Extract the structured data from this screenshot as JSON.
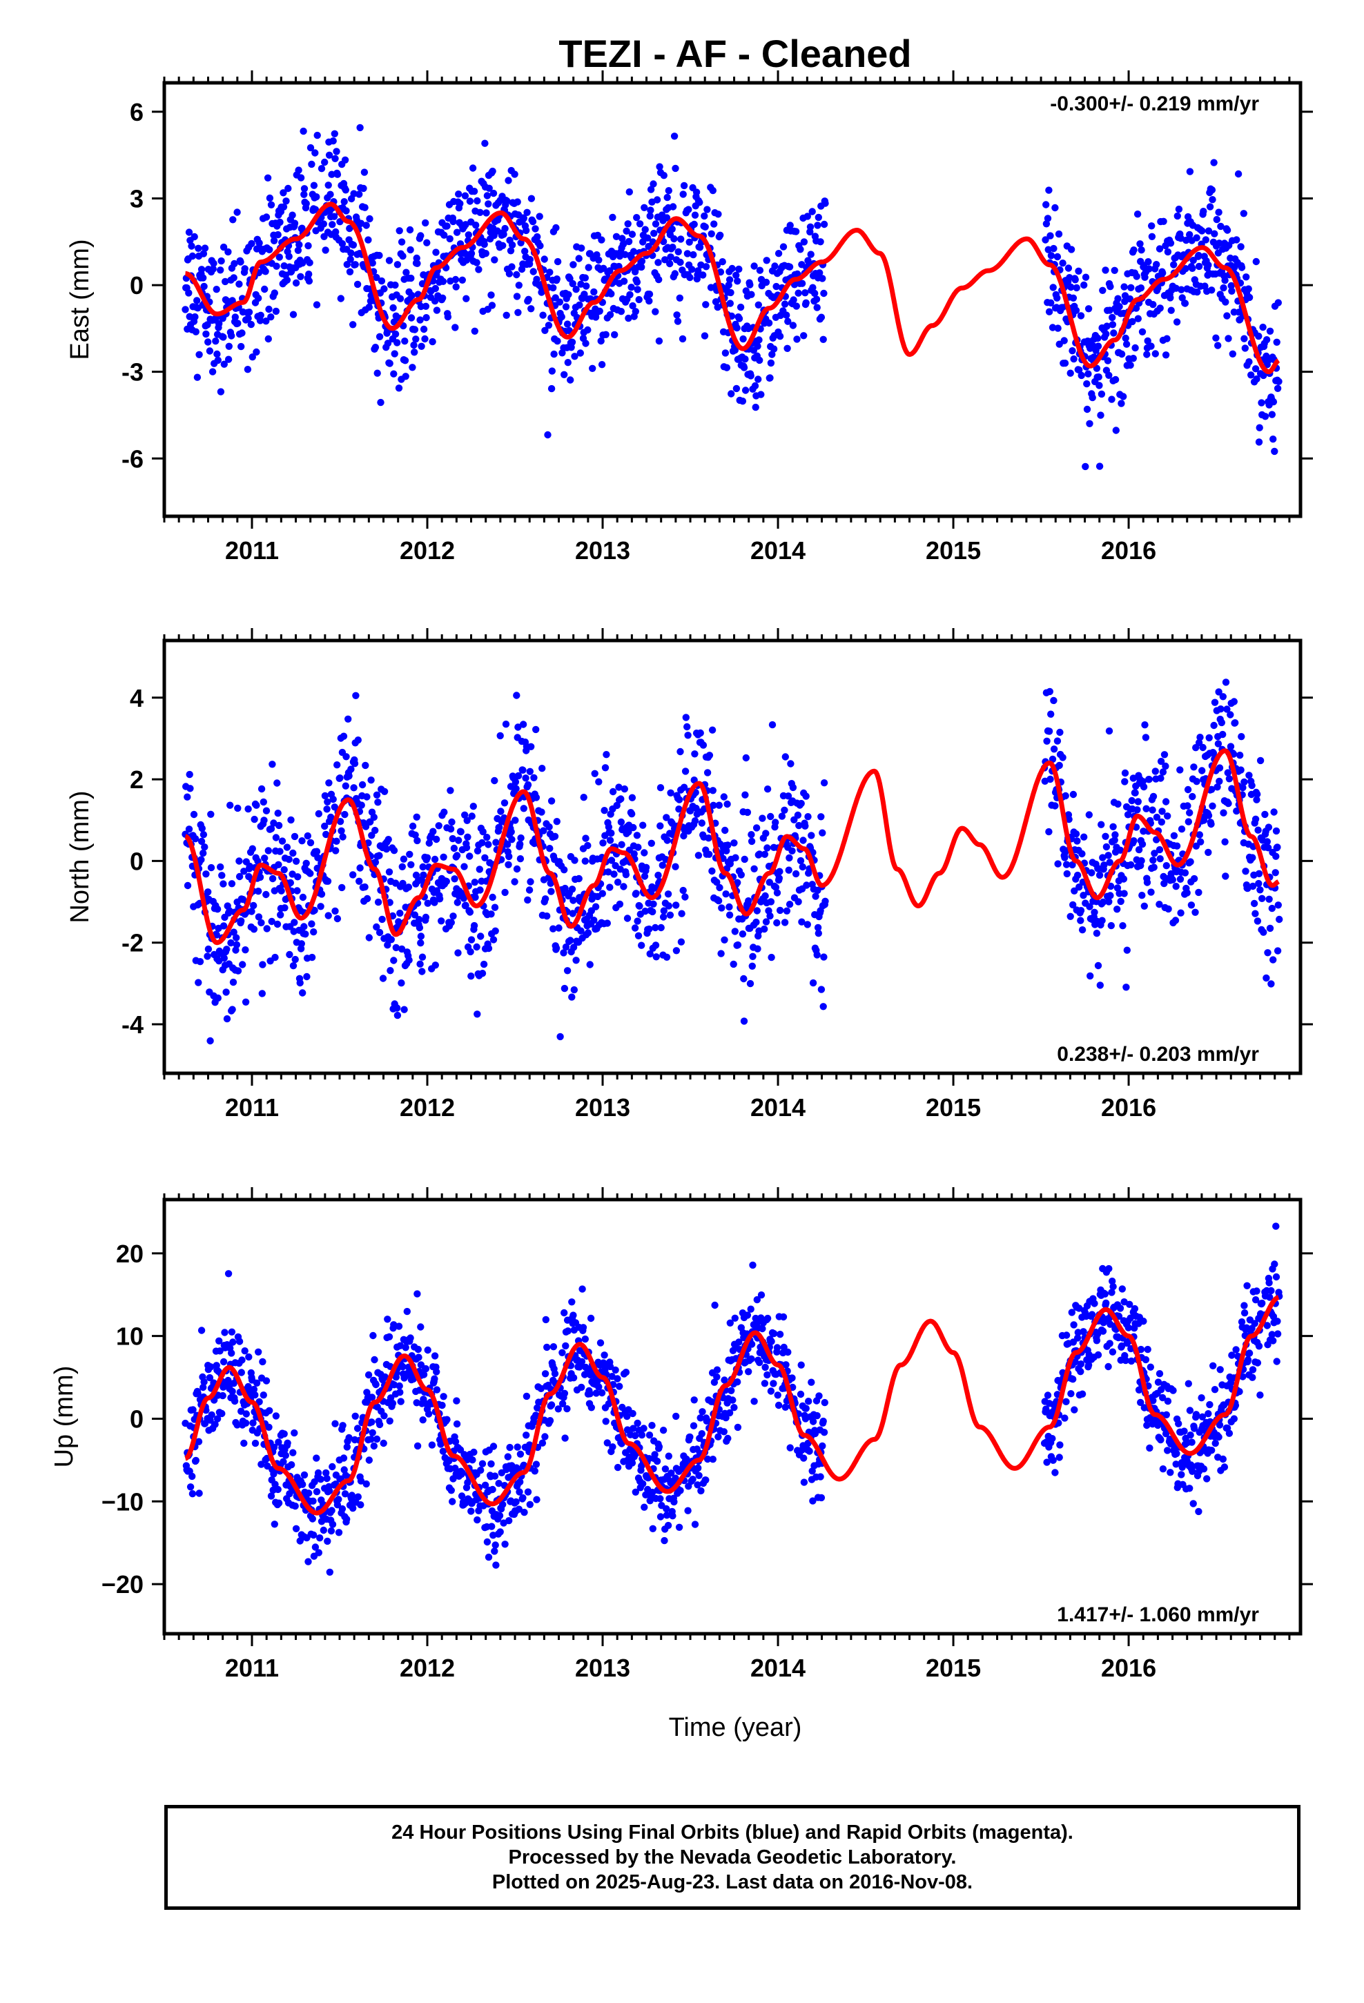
{
  "chart_data": {
    "type": "scatter",
    "title": "TEZI  - AF - Cleaned",
    "xlabel": "Time (year)",
    "xlim": [
      2010.5,
      2016.98
    ],
    "x_ticks": [
      2011,
      2012,
      2013,
      2014,
      2015,
      2016
    ],
    "x_tick_labels": [
      "2011",
      "2012",
      "2013",
      "2014",
      "2015",
      "2016"
    ],
    "colors": {
      "data": "#0000ff",
      "model": "#ff0000",
      "frame": "#000000"
    },
    "grid": false,
    "data_segments": [
      [
        2010.62,
        2014.27
      ],
      [
        2015.52,
        2016.86
      ]
    ],
    "panels": [
      {
        "name": "east",
        "ylabel": "East (mm)",
        "ylim": [
          -8.0,
          7.0
        ],
        "y_ticks": [
          -6,
          -3,
          0,
          3,
          6
        ],
        "y_tick_labels": [
          "-6",
          "-3",
          "0",
          "3",
          "6"
        ],
        "rate_label": "-0.300+/- 0.219 mm/yr",
        "rate_position": "top-right",
        "model_points": [
          [
            2010.62,
            0.4
          ],
          [
            2010.8,
            -1.0
          ],
          [
            2010.95,
            -0.6
          ],
          [
            2011.05,
            0.8
          ],
          [
            2011.25,
            1.6
          ],
          [
            2011.45,
            2.8
          ],
          [
            2011.55,
            2.2
          ],
          [
            2011.8,
            -1.5
          ],
          [
            2011.95,
            -0.5
          ],
          [
            2012.05,
            0.6
          ],
          [
            2012.2,
            1.3
          ],
          [
            2012.42,
            2.5
          ],
          [
            2012.55,
            1.6
          ],
          [
            2012.8,
            -1.8
          ],
          [
            2012.95,
            -0.6
          ],
          [
            2013.1,
            0.5
          ],
          [
            2013.25,
            1.1
          ],
          [
            2013.42,
            2.3
          ],
          [
            2013.55,
            1.7
          ],
          [
            2013.8,
            -2.2
          ],
          [
            2013.95,
            -0.8
          ],
          [
            2014.1,
            0.2
          ],
          [
            2014.25,
            0.8
          ],
          [
            2014.45,
            1.9
          ],
          [
            2014.58,
            1.1
          ],
          [
            2014.75,
            -2.4
          ],
          [
            2014.88,
            -1.4
          ],
          [
            2015.05,
            -0.1
          ],
          [
            2015.2,
            0.5
          ],
          [
            2015.42,
            1.6
          ],
          [
            2015.55,
            0.7
          ],
          [
            2015.78,
            -2.8
          ],
          [
            2015.92,
            -1.9
          ],
          [
            2016.05,
            -0.5
          ],
          [
            2016.2,
            0.2
          ],
          [
            2016.42,
            1.3
          ],
          [
            2016.55,
            0.6
          ],
          [
            2016.8,
            -3.0
          ],
          [
            2016.86,
            -2.6
          ]
        ],
        "amplitude": 2.0,
        "noise": 1.2
      },
      {
        "name": "north",
        "ylabel": "North (mm)",
        "ylim": [
          -5.2,
          5.4
        ],
        "y_ticks": [
          -4,
          -2,
          0,
          2,
          4
        ],
        "y_tick_labels": [
          "-4",
          "-2",
          "0",
          "2",
          "4"
        ],
        "rate_label": "0.238+/- 0.203 mm/yr",
        "rate_position": "bottom-right",
        "model_points": [
          [
            2010.62,
            0.6
          ],
          [
            2010.8,
            -2.0
          ],
          [
            2010.95,
            -1.2
          ],
          [
            2011.05,
            -0.1
          ],
          [
            2011.15,
            -0.3
          ],
          [
            2011.28,
            -1.4
          ],
          [
            2011.55,
            1.5
          ],
          [
            2011.7,
            -0.2
          ],
          [
            2011.82,
            -1.8
          ],
          [
            2011.95,
            -0.9
          ],
          [
            2012.05,
            -0.1
          ],
          [
            2012.15,
            -0.2
          ],
          [
            2012.28,
            -1.1
          ],
          [
            2012.55,
            1.7
          ],
          [
            2012.7,
            -0.3
          ],
          [
            2012.82,
            -1.6
          ],
          [
            2012.95,
            -0.6
          ],
          [
            2013.05,
            0.3
          ],
          [
            2013.12,
            0.2
          ],
          [
            2013.28,
            -0.9
          ],
          [
            2013.55,
            1.9
          ],
          [
            2013.7,
            -0.3
          ],
          [
            2013.82,
            -1.3
          ],
          [
            2013.95,
            -0.3
          ],
          [
            2014.05,
            0.6
          ],
          [
            2014.15,
            0.3
          ],
          [
            2014.25,
            -0.6
          ],
          [
            2014.55,
            2.2
          ],
          [
            2014.68,
            -0.2
          ],
          [
            2014.8,
            -1.1
          ],
          [
            2014.92,
            -0.3
          ],
          [
            2015.05,
            0.8
          ],
          [
            2015.15,
            0.4
          ],
          [
            2015.28,
            -0.4
          ],
          [
            2015.55,
            2.4
          ],
          [
            2015.7,
            0.0
          ],
          [
            2015.82,
            -0.9
          ],
          [
            2015.95,
            0.0
          ],
          [
            2016.05,
            1.1
          ],
          [
            2016.15,
            0.7
          ],
          [
            2016.28,
            -0.1
          ],
          [
            2016.55,
            2.7
          ],
          [
            2016.7,
            0.6
          ],
          [
            2016.82,
            -0.6
          ],
          [
            2016.86,
            -0.5
          ]
        ],
        "amplitude": 1.5,
        "noise": 1.0
      },
      {
        "name": "up",
        "ylabel": "Up (mm)",
        "ylim": [
          -26.0,
          26.5
        ],
        "y_ticks": [
          -20,
          -10,
          0,
          10,
          20
        ],
        "y_tick_labels": [
          "−20",
          "−10",
          "0",
          "10",
          "20"
        ],
        "rate_label": "1.417+/- 1.060 mm/yr",
        "rate_position": "bottom-right",
        "model_points": [
          [
            2010.62,
            -4.8
          ],
          [
            2010.75,
            2.5
          ],
          [
            2010.87,
            6.2
          ],
          [
            2011.0,
            2.0
          ],
          [
            2011.15,
            -6.0
          ],
          [
            2011.37,
            -11.4
          ],
          [
            2011.55,
            -7.5
          ],
          [
            2011.7,
            2.0
          ],
          [
            2011.87,
            7.6
          ],
          [
            2012.0,
            3.5
          ],
          [
            2012.15,
            -4.5
          ],
          [
            2012.37,
            -10.3
          ],
          [
            2012.55,
            -6.5
          ],
          [
            2012.7,
            3.0
          ],
          [
            2012.87,
            9.0
          ],
          [
            2013.0,
            5.0
          ],
          [
            2013.15,
            -3.0
          ],
          [
            2013.37,
            -8.8
          ],
          [
            2013.55,
            -5.0
          ],
          [
            2013.7,
            4.0
          ],
          [
            2013.87,
            10.4
          ],
          [
            2014.0,
            6.5
          ],
          [
            2014.15,
            -2.0
          ],
          [
            2014.35,
            -7.3
          ],
          [
            2014.55,
            -2.5
          ],
          [
            2014.7,
            6.5
          ],
          [
            2014.87,
            11.8
          ],
          [
            2015.0,
            8.0
          ],
          [
            2015.15,
            -1.0
          ],
          [
            2015.35,
            -6.0
          ],
          [
            2015.55,
            -1.0
          ],
          [
            2015.7,
            8.0
          ],
          [
            2015.87,
            13.2
          ],
          [
            2016.0,
            10.0
          ],
          [
            2016.15,
            0.5
          ],
          [
            2016.35,
            -4.2
          ],
          [
            2016.55,
            0.5
          ],
          [
            2016.7,
            10.0
          ],
          [
            2016.86,
            14.7
          ]
        ],
        "amplitude": 10.0,
        "noise": 3.0
      }
    ]
  },
  "footer": {
    "line1": "24 Hour Positions Using Final Orbits (blue) and Rapid Orbits (magenta).",
    "line2": "Processed by the Nevada Geodetic Laboratory.",
    "line3": "Plotted on 2025-Aug-23. Last data on 2016-Nov-08."
  }
}
